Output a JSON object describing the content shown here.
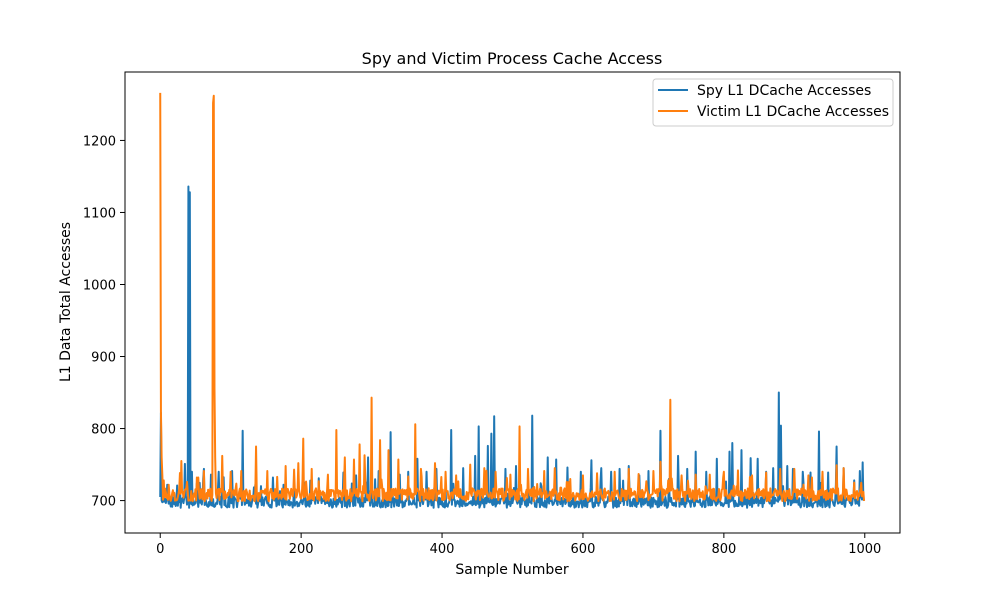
{
  "chart_data": {
    "type": "line",
    "title": "Spy and Victim Process Cache Access",
    "xlabel": "Sample Number",
    "ylabel": "L1 Data Total Accesses",
    "xlim": [
      -50,
      1050
    ],
    "ylim": [
      655,
      1295
    ],
    "xticks": [
      0,
      200,
      400,
      600,
      800,
      1000
    ],
    "yticks": [
      700,
      800,
      900,
      1000,
      1100,
      1200
    ],
    "grid": false,
    "legend_position": "top-right",
    "n_samples": 1000,
    "series": [
      {
        "name": "Spy L1 DCache Accesses",
        "color": "#1f77b4",
        "baseline": 698,
        "noise": 8,
        "seed": 7,
        "spikes": [
          [
            0,
            705
          ],
          [
            1,
            822
          ],
          [
            2,
            700
          ],
          [
            10,
            722
          ],
          [
            24,
            721
          ],
          [
            28,
            726
          ],
          [
            35,
            751
          ],
          [
            40,
            1136
          ],
          [
            41,
            690
          ],
          [
            42,
            1128
          ],
          [
            43,
            700
          ],
          [
            45,
            740
          ],
          [
            52,
            724
          ],
          [
            62,
            744
          ],
          [
            72,
            736
          ],
          [
            83,
            740
          ],
          [
            102,
            741
          ],
          [
            117,
            797
          ],
          [
            135,
            722
          ],
          [
            143,
            720
          ],
          [
            160,
            732
          ],
          [
            175,
            722
          ],
          [
            190,
            720
          ],
          [
            205,
            725
          ],
          [
            225,
            731
          ],
          [
            260,
            739
          ],
          [
            278,
            735
          ],
          [
            295,
            760
          ],
          [
            300,
            730
          ],
          [
            310,
            741
          ],
          [
            327,
            795
          ],
          [
            340,
            736
          ],
          [
            352,
            740
          ],
          [
            365,
            758
          ],
          [
            378,
            740
          ],
          [
            392,
            744
          ],
          [
            413,
            798
          ],
          [
            430,
            745
          ],
          [
            447,
            762
          ],
          [
            452,
            803
          ],
          [
            465,
            776
          ],
          [
            470,
            793
          ],
          [
            474,
            817
          ],
          [
            490,
            744
          ],
          [
            505,
            748
          ],
          [
            528,
            818
          ],
          [
            540,
            724
          ],
          [
            550,
            760
          ],
          [
            562,
            757
          ],
          [
            578,
            746
          ],
          [
            597,
            740
          ],
          [
            612,
            756
          ],
          [
            626,
            745
          ],
          [
            640,
            740
          ],
          [
            652,
            744
          ],
          [
            665,
            748
          ],
          [
            680,
            735
          ],
          [
            693,
            741
          ],
          [
            710,
            797
          ],
          [
            722,
            730
          ],
          [
            735,
            762
          ],
          [
            748,
            744
          ],
          [
            760,
            768
          ],
          [
            775,
            740
          ],
          [
            790,
            758
          ],
          [
            808,
            768
          ],
          [
            812,
            780
          ],
          [
            825,
            770
          ],
          [
            838,
            759
          ],
          [
            848,
            758
          ],
          [
            860,
            740
          ],
          [
            870,
            745
          ],
          [
            878,
            850
          ],
          [
            881,
            804
          ],
          [
            890,
            748
          ],
          [
            898,
            744
          ],
          [
            912,
            740
          ],
          [
            923,
            739
          ],
          [
            935,
            796
          ],
          [
            948,
            739
          ],
          [
            960,
            775
          ],
          [
            970,
            745
          ],
          [
            985,
            728
          ],
          [
            993,
            741
          ],
          [
            997,
            753
          ],
          [
            999,
            700
          ]
        ]
      },
      {
        "name": "Victim L1 DCache Accesses",
        "color": "#ff7f0e",
        "baseline": 708,
        "noise": 9,
        "seed": 13,
        "spikes": [
          [
            0,
            1266
          ],
          [
            1,
            824
          ],
          [
            2,
            760
          ],
          [
            3,
            735
          ],
          [
            5,
            728
          ],
          [
            12,
            722
          ],
          [
            30,
            755
          ],
          [
            38,
            726
          ],
          [
            52,
            732
          ],
          [
            62,
            741
          ],
          [
            75,
            1252
          ],
          [
            76,
            1262
          ],
          [
            77,
            856
          ],
          [
            78,
            760
          ],
          [
            88,
            762
          ],
          [
            100,
            740
          ],
          [
            115,
            741
          ],
          [
            136,
            775
          ],
          [
            152,
            741
          ],
          [
            166,
            733
          ],
          [
            178,
            748
          ],
          [
            196,
            752
          ],
          [
            203,
            786
          ],
          [
            215,
            744
          ],
          [
            238,
            736
          ],
          [
            250,
            798
          ],
          [
            262,
            760
          ],
          [
            275,
            757
          ],
          [
            283,
            778
          ],
          [
            290,
            763
          ],
          [
            300,
            843
          ],
          [
            312,
            784
          ],
          [
            324,
            770
          ],
          [
            338,
            757
          ],
          [
            362,
            806
          ],
          [
            370,
            744
          ],
          [
            390,
            752
          ],
          [
            405,
            740
          ],
          [
            420,
            735
          ],
          [
            440,
            750
          ],
          [
            460,
            745
          ],
          [
            476,
            740
          ],
          [
            497,
            736
          ],
          [
            510,
            803
          ],
          [
            522,
            744
          ],
          [
            545,
            741
          ],
          [
            560,
            745
          ],
          [
            582,
            730
          ],
          [
            600,
            735
          ],
          [
            620,
            738
          ],
          [
            645,
            740
          ],
          [
            665,
            744
          ],
          [
            700,
            741
          ],
          [
            710,
            754
          ],
          [
            724,
            840
          ],
          [
            740,
            735
          ],
          [
            760,
            736
          ],
          [
            780,
            736
          ],
          [
            800,
            740
          ],
          [
            820,
            742
          ],
          [
            840,
            735
          ],
          [
            860,
            739
          ],
          [
            880,
            744
          ],
          [
            900,
            744
          ],
          [
            920,
            735
          ],
          [
            940,
            740
          ],
          [
            960,
            749
          ],
          [
            970,
            745
          ],
          [
            985,
            725
          ],
          [
            998,
            712
          ]
        ]
      }
    ]
  }
}
